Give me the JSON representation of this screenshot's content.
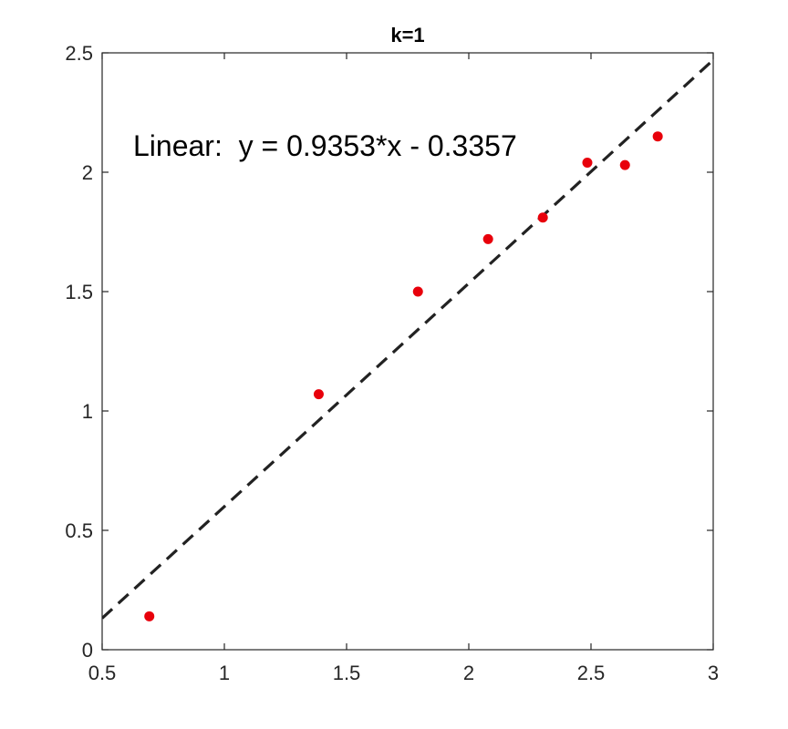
{
  "chart_data": {
    "type": "scatter",
    "title": "k=1",
    "xlabel": "",
    "ylabel": "",
    "xlim": [
      0.5,
      3
    ],
    "ylim": [
      0,
      2.5
    ],
    "xticks": [
      0.5,
      1,
      1.5,
      2,
      2.5,
      3
    ],
    "xtick_labels": [
      "0.5",
      "1",
      "1.5",
      "2",
      "2.5",
      "3"
    ],
    "yticks": [
      0,
      0.5,
      1,
      1.5,
      2,
      2.5
    ],
    "ytick_labels": [
      "0",
      "0.5",
      "1",
      "1.5",
      "2",
      "2.5"
    ],
    "grid": false,
    "annotation": "Linear:  y = 0.9353*x - 0.3357",
    "series": [
      {
        "kind": "scatter",
        "color": "#e8000b",
        "points": [
          {
            "x": 0.693,
            "y": 0.14
          },
          {
            "x": 1.386,
            "y": 1.07
          },
          {
            "x": 1.792,
            "y": 1.5
          },
          {
            "x": 2.079,
            "y": 1.72
          },
          {
            "x": 2.303,
            "y": 1.81
          },
          {
            "x": 2.485,
            "y": 2.04
          },
          {
            "x": 2.639,
            "y": 2.03
          },
          {
            "x": 2.773,
            "y": 2.15
          }
        ]
      },
      {
        "kind": "fit-line",
        "color": "#222222",
        "style": "dashed",
        "slope": 0.9353,
        "intercept": -0.3357
      }
    ]
  }
}
